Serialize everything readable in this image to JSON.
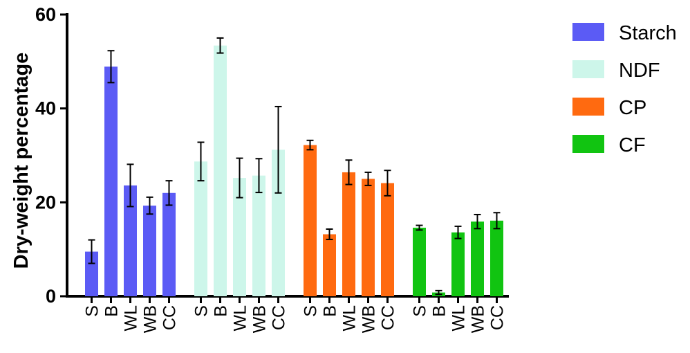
{
  "chart_data": {
    "type": "bar",
    "ylabel": "Dry-weight percentage",
    "ylim": [
      0,
      60
    ],
    "yticks": [
      0,
      20,
      40,
      60
    ],
    "categories": [
      "S",
      "B",
      "WL",
      "WB",
      "CC"
    ],
    "legend_position": "top-right",
    "series": [
      {
        "name": "Starch",
        "color": "#5b5bf5",
        "values": [
          9.5,
          48.9,
          23.6,
          19.3,
          22.0
        ],
        "errors": [
          2.5,
          3.4,
          4.5,
          1.8,
          2.6
        ]
      },
      {
        "name": "NDF",
        "color": "#cdf6ea",
        "values": [
          28.7,
          53.4,
          25.2,
          25.7,
          31.2
        ],
        "errors": [
          4.1,
          1.6,
          4.2,
          3.6,
          9.2
        ]
      },
      {
        "name": "CP",
        "color": "#ff6a10",
        "values": [
          32.2,
          13.2,
          26.4,
          25.0,
          24.1
        ],
        "errors": [
          1.0,
          1.1,
          2.6,
          1.4,
          2.7
        ]
      },
      {
        "name": "CF",
        "color": "#11c411",
        "values": [
          14.6,
          0.8,
          13.6,
          15.9,
          16.1
        ],
        "errors": [
          0.5,
          0.4,
          1.3,
          1.5,
          1.7
        ]
      }
    ]
  }
}
